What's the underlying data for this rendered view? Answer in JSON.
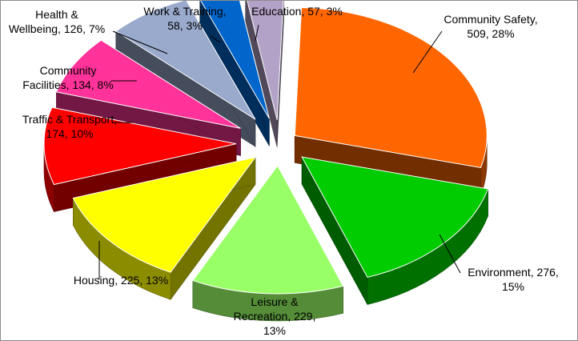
{
  "chart_data": {
    "type": "pie",
    "style": "exploded-3d",
    "title": "",
    "legend": "none",
    "slices": [
      {
        "name": "Community Safety",
        "value": 509,
        "percent": "28%",
        "color": "#ff6600",
        "label_lines": [
          "Community Safety,",
          "509, 28%"
        ]
      },
      {
        "name": "Environment",
        "value": 276,
        "percent": "15%",
        "color": "#00cc00",
        "label_lines": [
          "Environment, 276,",
          "15%"
        ]
      },
      {
        "name": "Leisure & Recreation",
        "value": 229,
        "percent": "13%",
        "color": "#99ff66",
        "label_lines": [
          "Leisure &",
          "Recreation, 229,",
          "13%"
        ]
      },
      {
        "name": "Housing",
        "value": 225,
        "percent": "13%",
        "color": "#ffff00",
        "label_lines": [
          "Housing, 225, 13%"
        ]
      },
      {
        "name": "Traffic & Transport",
        "value": 174,
        "percent": "10%",
        "color": "#ff0000",
        "label_lines": [
          "Traffic & Transport,",
          "174, 10%"
        ]
      },
      {
        "name": "Community Facilities",
        "value": 134,
        "percent": "8%",
        "color": "#ff3399",
        "label_lines": [
          "Community",
          "Facilities, 134, 8%"
        ]
      },
      {
        "name": "Health & Wellbeing",
        "value": 126,
        "percent": "7%",
        "color": "#99aacc",
        "label_lines": [
          "Health &",
          "Wellbeing, 126, 7%"
        ]
      },
      {
        "name": "Work & Training",
        "value": 58,
        "percent": "3%",
        "color": "#0066cc",
        "label_lines": [
          "Work & Training,",
          "58, 3%"
        ]
      },
      {
        "name": "Education",
        "value": 57,
        "percent": "3%",
        "color": "#b3a2c7",
        "label_lines": [
          "Education, 57, 3%"
        ]
      }
    ]
  }
}
